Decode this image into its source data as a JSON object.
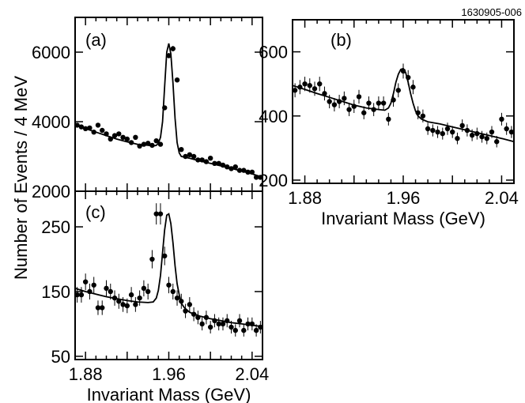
{
  "figure_id": "1630905-006",
  "shared_ylabel": "Number of Events / 4 MeV",
  "chart_data": [
    {
      "type": "scatter",
      "panel_label": "(a)",
      "xlim": [
        1.87,
        2.05
      ],
      "ylim": [
        2000,
        7000
      ],
      "yticks": [
        "2000",
        "4000",
        "6000"
      ],
      "xticks": [],
      "xlabel": "",
      "points": {
        "x": [
          1.872,
          1.876,
          1.88,
          1.884,
          1.888,
          1.892,
          1.896,
          1.9,
          1.904,
          1.908,
          1.912,
          1.916,
          1.92,
          1.924,
          1.928,
          1.932,
          1.936,
          1.94,
          1.944,
          1.948,
          1.952,
          1.956,
          1.96,
          1.964,
          1.968,
          1.972,
          1.976,
          1.98,
          1.984,
          1.988,
          1.992,
          1.996,
          2.0,
          2.004,
          2.008,
          2.012,
          2.016,
          2.02,
          2.024,
          2.028,
          2.032,
          2.036,
          2.04,
          2.044,
          2.048
        ],
        "y": [
          3900,
          3850,
          3800,
          3820,
          3700,
          3900,
          3750,
          3650,
          3500,
          3600,
          3650,
          3550,
          3500,
          3400,
          3550,
          3300,
          3350,
          3380,
          3320,
          3450,
          3350,
          4400,
          5900,
          6100,
          5200,
          3200,
          3000,
          3050,
          3000,
          2900,
          2900,
          2850,
          2950,
          2800,
          2800,
          2750,
          2700,
          2650,
          2700,
          2600,
          2600,
          2550,
          2550,
          2400,
          2400
        ]
      },
      "fit": {
        "x": [
          1.87,
          1.88,
          1.89,
          1.9,
          1.91,
          1.92,
          1.93,
          1.94,
          1.945,
          1.948,
          1.95,
          1.952,
          1.954,
          1.956,
          1.958,
          1.96,
          1.962,
          1.964,
          1.966,
          1.968,
          1.97,
          1.972,
          1.975,
          1.98,
          1.99,
          2.0,
          2.01,
          2.02,
          2.03,
          2.04,
          2.05
        ],
        "y": [
          3900,
          3800,
          3700,
          3600,
          3500,
          3420,
          3350,
          3320,
          3300,
          3320,
          3380,
          3550,
          4000,
          5000,
          6000,
          6250,
          5950,
          5100,
          4100,
          3400,
          3100,
          3000,
          2980,
          2950,
          2870,
          2800,
          2730,
          2660,
          2580,
          2500,
          2400
        ]
      }
    },
    {
      "type": "scatter",
      "panel_label": "(b)",
      "xlim": [
        1.87,
        2.05
      ],
      "ylim": [
        190,
        700
      ],
      "yticks": [
        "200",
        "400",
        "600"
      ],
      "xticks": [
        "1.88",
        "1.96",
        "2.04"
      ],
      "xlabel": "Invariant Mass (GeV)",
      "points": {
        "x": [
          1.872,
          1.876,
          1.88,
          1.884,
          1.888,
          1.892,
          1.896,
          1.9,
          1.904,
          1.908,
          1.912,
          1.916,
          1.92,
          1.924,
          1.928,
          1.932,
          1.936,
          1.94,
          1.944,
          1.948,
          1.952,
          1.956,
          1.96,
          1.964,
          1.968,
          1.972,
          1.976,
          1.98,
          1.984,
          1.988,
          1.992,
          1.996,
          2.0,
          2.004,
          2.008,
          2.012,
          2.016,
          2.02,
          2.024,
          2.028,
          2.032,
          2.036,
          2.04,
          2.044,
          2.048
        ],
        "y": [
          480,
          490,
          500,
          495,
          485,
          500,
          470,
          445,
          435,
          445,
          455,
          420,
          430,
          460,
          410,
          440,
          420,
          440,
          440,
          390,
          450,
          480,
          540,
          520,
          490,
          410,
          400,
          360,
          355,
          350,
          345,
          360,
          350,
          330,
          370,
          355,
          340,
          345,
          335,
          330,
          350,
          320,
          390,
          360,
          350
        ]
      },
      "fit": {
        "x": [
          1.87,
          1.88,
          1.89,
          1.9,
          1.91,
          1.92,
          1.93,
          1.94,
          1.945,
          1.948,
          1.95,
          1.952,
          1.954,
          1.956,
          1.958,
          1.96,
          1.962,
          1.964,
          1.966,
          1.968,
          1.97,
          1.972,
          1.975,
          1.98,
          1.99,
          2.0,
          2.01,
          2.02,
          2.03,
          2.04,
          2.05
        ],
        "y": [
          495,
          483,
          470,
          458,
          446,
          434,
          425,
          420,
          418,
          425,
          440,
          470,
          505,
          530,
          545,
          548,
          535,
          505,
          470,
          440,
          415,
          400,
          390,
          382,
          375,
          366,
          357,
          348,
          339,
          330,
          320
        ]
      }
    },
    {
      "type": "scatter",
      "panel_label": "(c)",
      "xlim": [
        1.87,
        2.05
      ],
      "ylim": [
        45,
        305
      ],
      "yticks": [
        "50",
        "150",
        "250"
      ],
      "xticks": [
        "1.88",
        "1.96",
        "2.04"
      ],
      "xlabel": "Invariant Mass (GeV)",
      "points": {
        "x": [
          1.872,
          1.876,
          1.88,
          1.884,
          1.888,
          1.892,
          1.896,
          1.9,
          1.904,
          1.908,
          1.912,
          1.916,
          1.92,
          1.924,
          1.928,
          1.932,
          1.936,
          1.94,
          1.944,
          1.948,
          1.952,
          1.956,
          1.96,
          1.964,
          1.968,
          1.972,
          1.976,
          1.98,
          1.984,
          1.988,
          1.992,
          1.996,
          2.0,
          2.004,
          2.008,
          2.012,
          2.016,
          2.02,
          2.024,
          2.028,
          2.032,
          2.036,
          2.04,
          2.044,
          2.048
        ],
        "y": [
          145,
          145,
          165,
          150,
          160,
          125,
          125,
          155,
          150,
          140,
          135,
          130,
          128,
          145,
          130,
          140,
          155,
          150,
          200,
          270,
          270,
          205,
          160,
          150,
          140,
          135,
          120,
          130,
          115,
          110,
          100,
          110,
          95,
          105,
          100,
          100,
          105,
          95,
          90,
          105,
          90,
          100,
          100,
          90,
          95
        ]
      },
      "fit": {
        "x": [
          1.87,
          1.88,
          1.89,
          1.9,
          1.91,
          1.92,
          1.93,
          1.94,
          1.945,
          1.948,
          1.95,
          1.952,
          1.954,
          1.956,
          1.958,
          1.96,
          1.962,
          1.964,
          1.966,
          1.968,
          1.97,
          1.972,
          1.975,
          1.98,
          1.99,
          2.0,
          2.01,
          2.02,
          2.03,
          2.04,
          2.05
        ],
        "y": [
          155,
          150,
          146,
          142,
          139,
          136,
          134,
          133,
          134,
          140,
          152,
          175,
          210,
          245,
          268,
          270,
          255,
          225,
          190,
          162,
          145,
          132,
          125,
          118,
          112,
          108,
          105,
          102,
          100,
          98,
          96
        ]
      }
    }
  ]
}
